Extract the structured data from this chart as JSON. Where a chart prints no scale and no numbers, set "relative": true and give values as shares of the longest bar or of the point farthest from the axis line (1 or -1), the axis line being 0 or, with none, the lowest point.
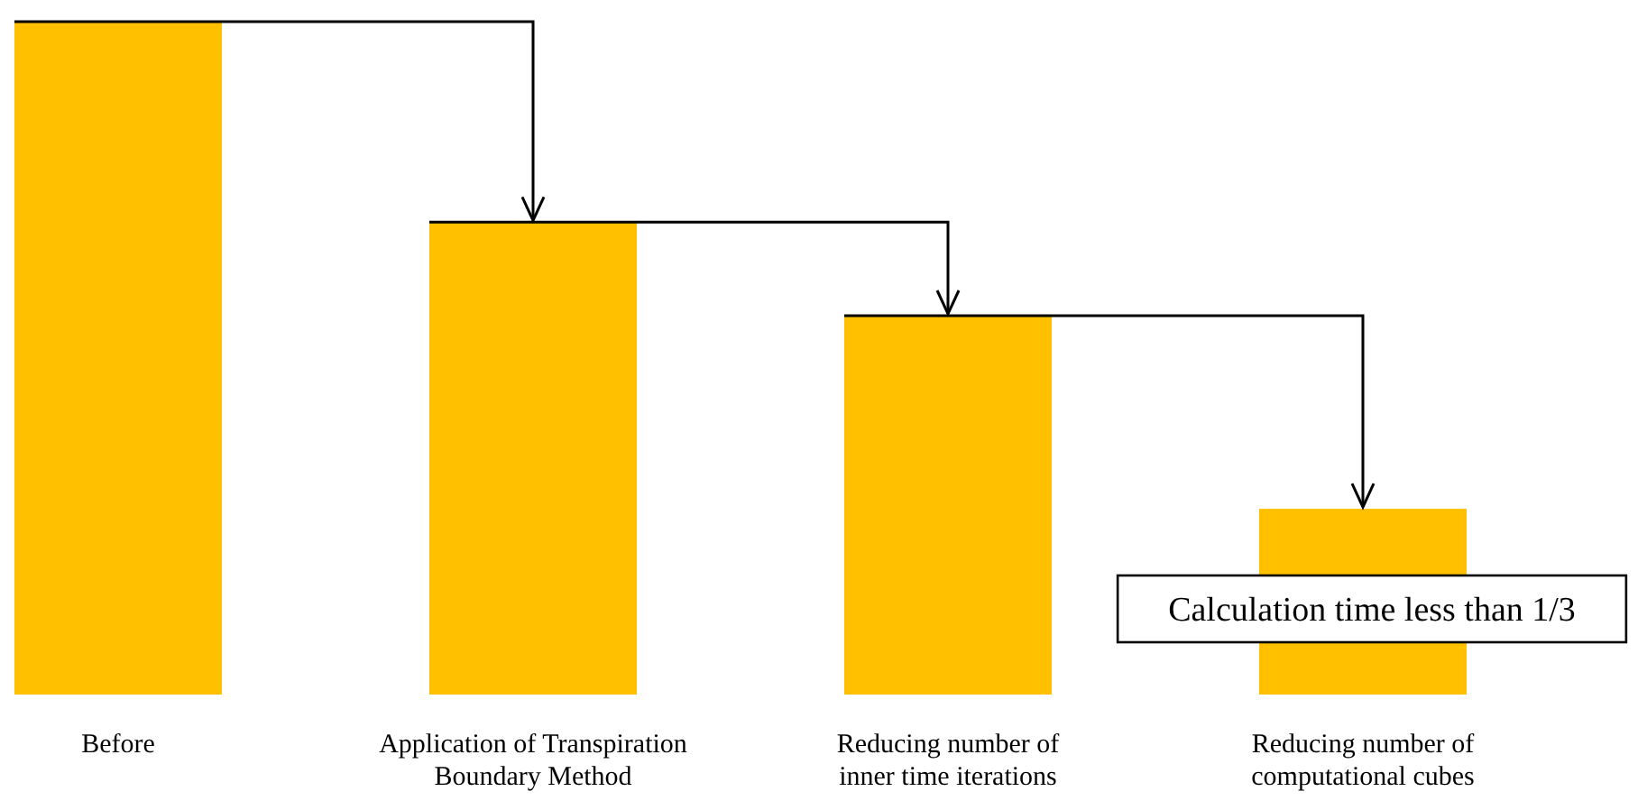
{
  "chart_data": {
    "type": "bar",
    "relative": true,
    "categories": [
      "Before",
      "Application of Transpiration Boundary Method",
      "Reducing number of inner time iterations",
      "Reducing number of computational cubes"
    ],
    "values": [
      1,
      0.702,
      0.563,
      0.276
    ],
    "color": "#ffc000",
    "annotations": [
      "Calculation time less than 1/3"
    ]
  }
}
